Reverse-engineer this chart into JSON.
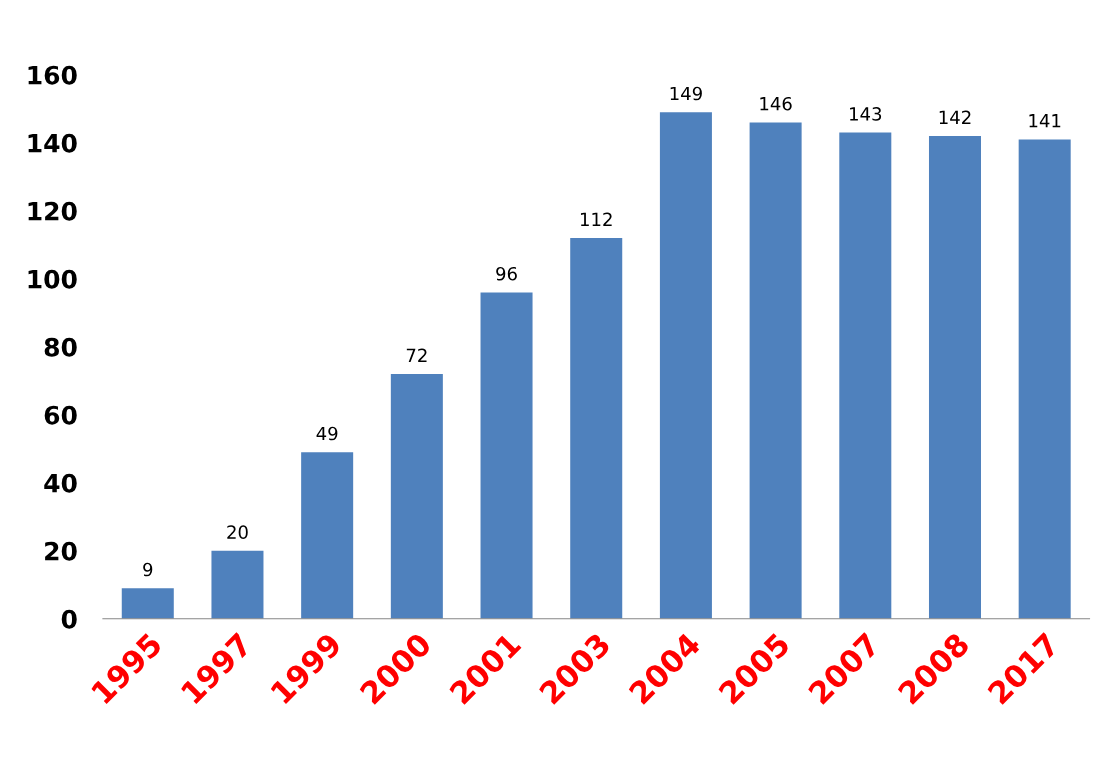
{
  "chart_data": {
    "type": "bar",
    "categories": [
      "1995",
      "1997",
      "1999",
      "2000",
      "2001",
      "2003",
      "2004",
      "2005",
      "2007",
      "2008",
      "2017"
    ],
    "values": [
      9,
      20,
      49,
      72,
      96,
      112,
      149,
      146,
      143,
      142,
      141
    ],
    "color": "#4f81bd",
    "ylim": [
      0,
      160
    ],
    "yticks": [
      0,
      20,
      40,
      60,
      80,
      100,
      120,
      140,
      160
    ],
    "data_labels": true,
    "grid": false,
    "legend": false
  }
}
